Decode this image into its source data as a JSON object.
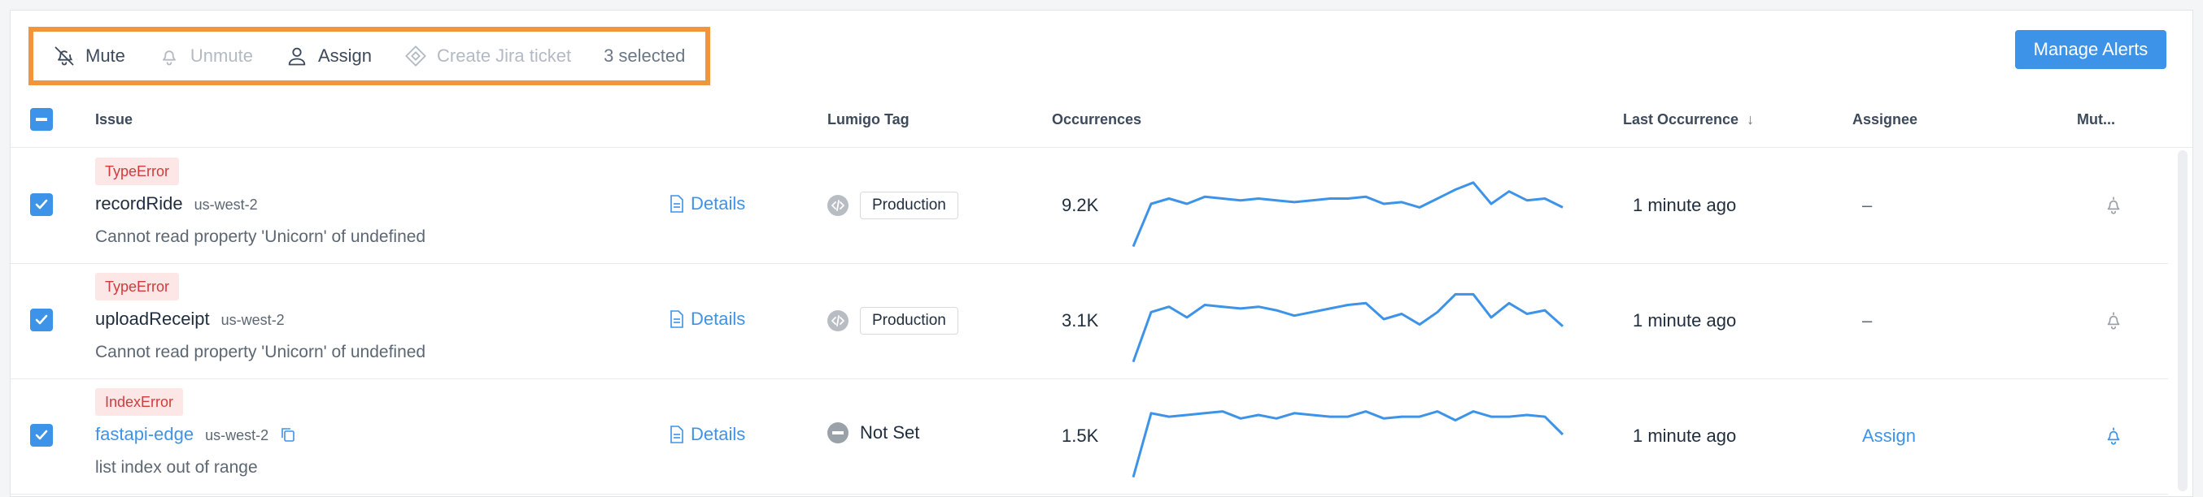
{
  "toolbar": {
    "mute_label": "Mute",
    "unmute_label": "Unmute",
    "assign_label": "Assign",
    "jira_label": "Create Jira ticket",
    "selected_text": "3 selected"
  },
  "manage_alerts_label": "Manage Alerts",
  "columns": {
    "issue": "Issue",
    "tag": "Lumigo Tag",
    "occurrences": "Occurrences",
    "last_occurrence": "Last Occurrence",
    "assignee": "Assignee",
    "muted": "Mut..."
  },
  "colors": {
    "accent": "#3d93e8",
    "highlight": "#f0953a",
    "error_bg": "#fde6e6",
    "error_text": "#d23b3b"
  },
  "rows": [
    {
      "error_type": "TypeError",
      "function": "recordRide",
      "region": "us-west-2",
      "message": "Cannot read property 'Unicorn' of undefined",
      "details_label": "Details",
      "tag": "Production",
      "occurrences": "9.2K",
      "last_occurrence": "1 minute ago",
      "assignee": "–",
      "trend": [
        2,
        26,
        29,
        26,
        30,
        29,
        28,
        29,
        28,
        27,
        28,
        29,
        29,
        30,
        26,
        27,
        24,
        29,
        34,
        38,
        26,
        33,
        28,
        29,
        24
      ]
    },
    {
      "error_type": "TypeError",
      "function": "uploadReceipt",
      "region": "us-west-2",
      "message": "Cannot read property 'Unicorn' of undefined",
      "details_label": "Details",
      "tag": "Production",
      "occurrences": "3.1K",
      "last_occurrence": "1 minute ago",
      "assignee": "–",
      "trend": [
        2,
        30,
        33,
        27,
        34,
        33,
        32,
        33,
        31,
        28,
        30,
        32,
        34,
        35,
        26,
        29,
        23,
        30,
        40,
        40,
        27,
        35,
        29,
        31,
        22
      ]
    },
    {
      "error_type": "IndexError",
      "function": "fastapi-edge",
      "region": "us-west-2",
      "message": "list index out of range",
      "details_label": "Details",
      "tag": "Not Set",
      "occurrences": "1.5K",
      "last_occurrence": "1 minute ago",
      "assignee": "Assign",
      "trend": [
        2,
        38,
        36,
        37,
        38,
        39,
        35,
        37,
        35,
        38,
        37,
        36,
        36,
        39,
        35,
        36,
        36,
        39,
        34,
        39,
        36,
        36,
        37,
        36,
        26
      ]
    }
  ],
  "icons": {
    "mute": "bell-off-icon",
    "unmute": "bell-icon",
    "assign": "user-icon",
    "jira": "jira-diamond-icon",
    "details": "document-icon",
    "tag": "code-tag-icon",
    "copy": "copy-icon",
    "sort": "arrow-down-icon"
  }
}
